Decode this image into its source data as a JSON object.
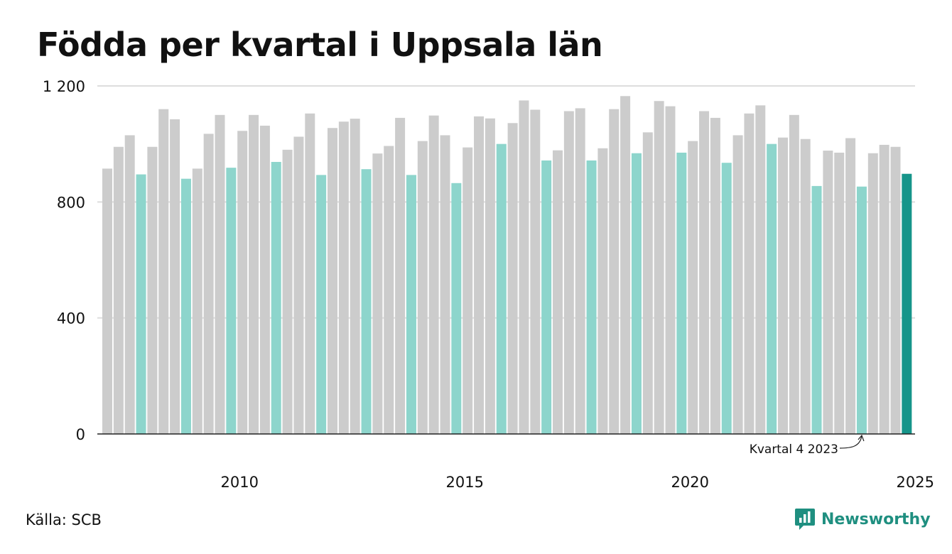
{
  "title": "Födda per kvartal i Uppsala län",
  "source": "Källa: SCB",
  "brand": {
    "name": "Newsworthy",
    "color": "#1f8f80"
  },
  "colors": {
    "default_bar": "#cccccc",
    "highlight_bar": "#8dd5cc",
    "latest_bar": "#16958a",
    "gridline": "#dddddd",
    "baseline": "#222222"
  },
  "annotation": {
    "label": "Kvartal 4 2023",
    "target_index": 67
  },
  "chart_data": {
    "type": "bar",
    "title": "Födda per kvartal i Uppsala län",
    "xlabel": "",
    "ylabel": "",
    "ylim": [
      0,
      1200
    ],
    "yticks": [
      0,
      400,
      800,
      1200
    ],
    "ytick_labels": [
      "0",
      "400",
      "800",
      "1 200"
    ],
    "xtick_labels": [
      "2010",
      "2015",
      "2020",
      "2025"
    ],
    "xtick_indices": [
      11.75,
      31.75,
      51.75,
      71.75
    ],
    "grid": true,
    "legend": "none",
    "highlight_rule": "quarter 4 bars highlighted; latest bar darkest",
    "categories": [
      "2007 K1",
      "2007 K2",
      "2007 K3",
      "2007 K4",
      "2008 K1",
      "2008 K2",
      "2008 K3",
      "2008 K4",
      "2009 K1",
      "2009 K2",
      "2009 K3",
      "2009 K4",
      "2010 K1",
      "2010 K2",
      "2010 K3",
      "2010 K4",
      "2011 K1",
      "2011 K2",
      "2011 K3",
      "2011 K4",
      "2012 K1",
      "2012 K2",
      "2012 K3",
      "2012 K4",
      "2013 K1",
      "2013 K2",
      "2013 K3",
      "2013 K4",
      "2014 K1",
      "2014 K2",
      "2014 K3",
      "2014 K4",
      "2015 K1",
      "2015 K2",
      "2015 K3",
      "2015 K4",
      "2016 K1",
      "2016 K2",
      "2016 K3",
      "2016 K4",
      "2017 K1",
      "2017 K2",
      "2017 K3",
      "2017 K4",
      "2018 K1",
      "2018 K2",
      "2018 K3",
      "2018 K4",
      "2019 K1",
      "2019 K2",
      "2019 K3",
      "2019 K4",
      "2020 K1",
      "2020 K2",
      "2020 K3",
      "2020 K4",
      "2021 K1",
      "2021 K2",
      "2021 K3",
      "2021 K4",
      "2022 K1",
      "2022 K2",
      "2022 K3",
      "2022 K4",
      "2023 K1",
      "2023 K2",
      "2023 K3",
      "2023 K4",
      "2024 K1",
      "2024 K2",
      "2024 K3",
      "2024 K4"
    ],
    "values": [
      915,
      990,
      1030,
      895,
      990,
      1120,
      1085,
      880,
      915,
      1035,
      1100,
      918,
      1045,
      1100,
      1063,
      938,
      980,
      1025,
      1105,
      893,
      1055,
      1077,
      1087,
      913,
      967,
      993,
      1090,
      893,
      1010,
      1098,
      1030,
      865,
      988,
      1095,
      1088,
      1000,
      1072,
      1150,
      1118,
      943,
      978,
      1113,
      1123,
      943,
      985,
      1120,
      1165,
      968,
      1040,
      1148,
      1130,
      970,
      1010,
      1113,
      1090,
      935,
      1030,
      1105,
      1133,
      1000,
      1022,
      1100,
      1017,
      855,
      977,
      970,
      1020,
      853,
      968,
      997,
      990,
      897
    ]
  }
}
